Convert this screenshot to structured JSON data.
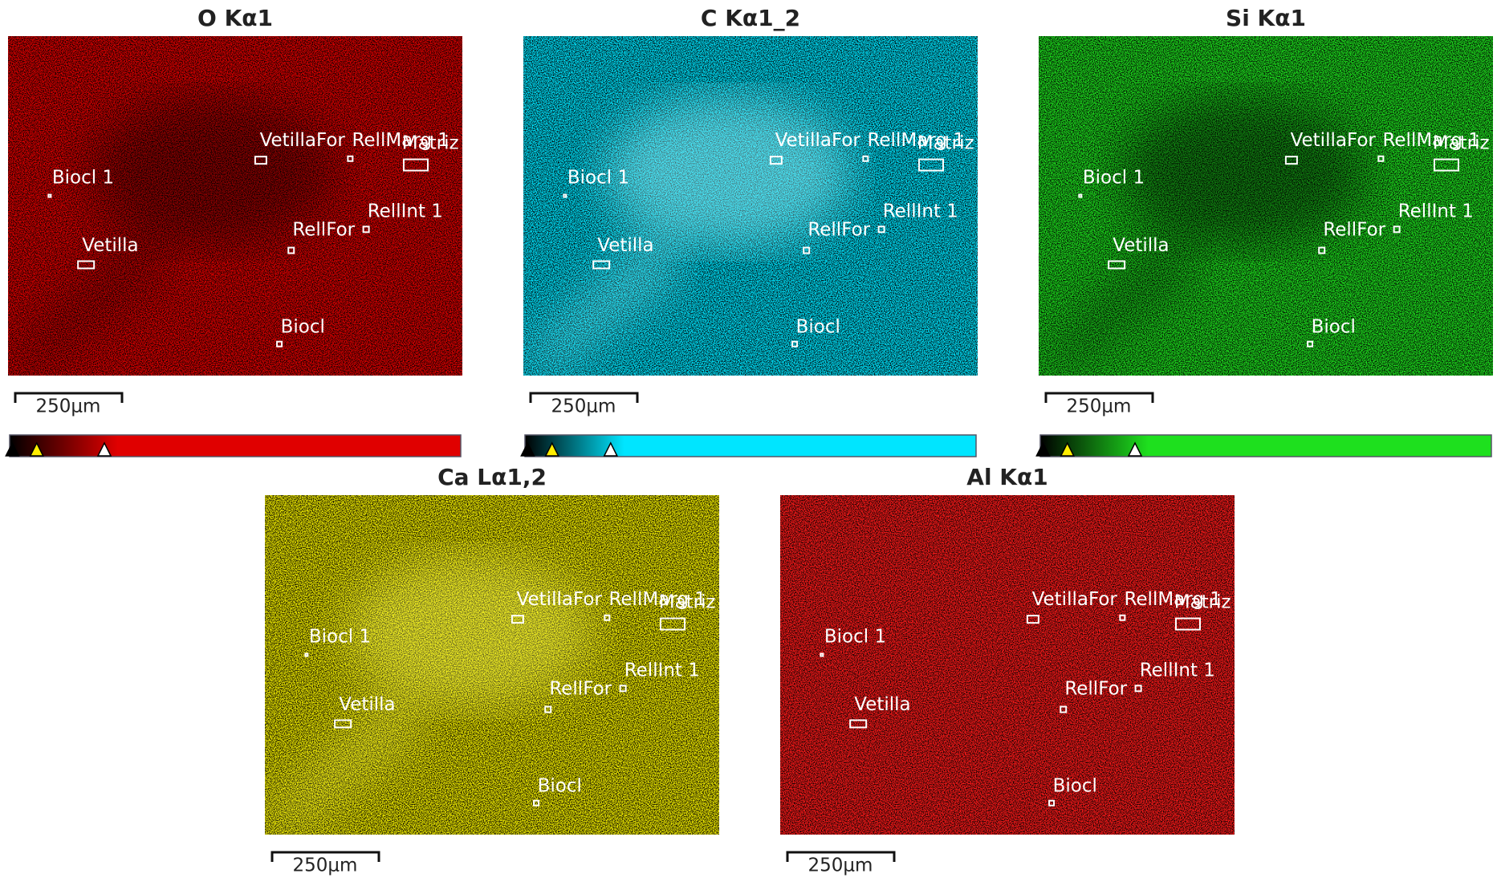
{
  "panels": [
    {
      "title": "O Kα1",
      "color": "#e00000",
      "base": "#8a0000"
    },
    {
      "title": "C Kα1_2",
      "color": "#00e5ff",
      "base": "#0a3c44"
    },
    {
      "title": "Si Kα1",
      "color": "#1ee01e",
      "base": "#0f8a0f"
    },
    {
      "title": "Ca Lα1,2",
      "color": "#f5f000",
      "base": "#3a3600"
    },
    {
      "title": "Al Kα1",
      "color": "#ff1a1a",
      "base": "#3a0606"
    }
  ],
  "regions": [
    "VetillaFor",
    "RellMarg 1",
    "Matriz",
    "Biocl 1",
    "RellInt 1",
    "RellFor",
    "Vetilla",
    "Biocl"
  ],
  "scale_label": "250μm"
}
